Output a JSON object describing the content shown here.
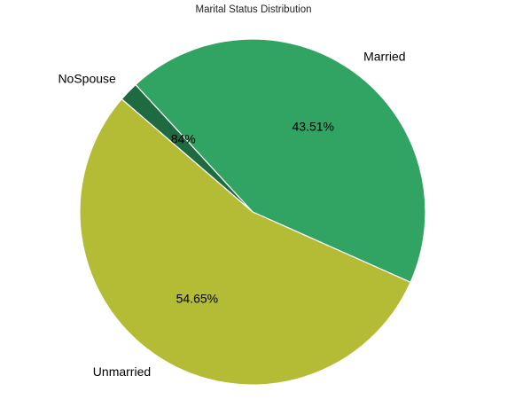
{
  "chart_data": {
    "type": "pie",
    "title": "Marital Status Distribution",
    "slices": [
      {
        "label": "Married",
        "value": 43.51,
        "value_label": "43.51%",
        "color": "#31a362"
      },
      {
        "label": "NoSpouse",
        "value": 1.84,
        "value_label": "1.84%",
        "color": "#1f6b41"
      },
      {
        "label": "Unmarried",
        "value": 54.65,
        "value_label": "54.65%",
        "color": "#b4bb35"
      }
    ],
    "start_angle_deg": -24,
    "direction": "counterclockwise",
    "edge_color": "#ffffff"
  }
}
